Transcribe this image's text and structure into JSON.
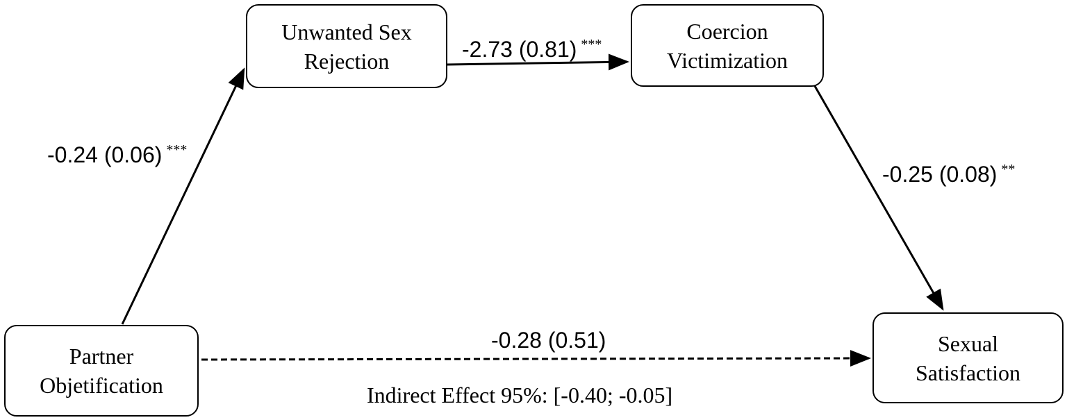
{
  "nodes": {
    "unwanted": {
      "line1": "Unwanted Sex",
      "line2": "Rejection"
    },
    "coercion": {
      "line1": "Coercion",
      "line2": "Victimization"
    },
    "partner": {
      "line1": "Partner",
      "line2": "Objetification"
    },
    "sexual": {
      "line1": "Sexual",
      "line2": "Satisfaction"
    }
  },
  "paths": {
    "a": {
      "coef": "-0.24 (0.06)",
      "sig": "***"
    },
    "d": {
      "coef": "-2.73 (0.81)",
      "sig": "***"
    },
    "b": {
      "coef": "-0.25 (0.08)",
      "sig": "**"
    },
    "c": {
      "coef": "-0.28 (0.51)",
      "style": "dashed"
    }
  },
  "indirect_effect": "Indirect Effect 95%: [-0.40; -0.05]"
}
